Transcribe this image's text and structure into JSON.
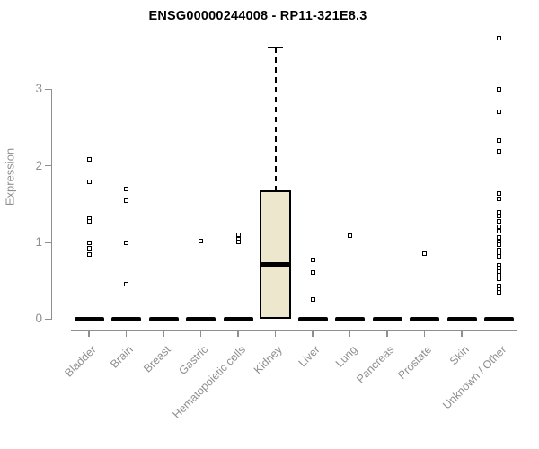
{
  "title": "ENSG00000244008 - RP11-321E8.3",
  "chart_data": {
    "type": "box",
    "title": "ENSG00000244008 - RP11-321E8.3",
    "xlabel": "",
    "ylabel": "Expression",
    "ylim": [
      0,
      3.7
    ],
    "yticks": [
      0,
      1,
      2,
      3
    ],
    "grid": false,
    "legend": null,
    "categories": [
      "Bladder",
      "Brain",
      "Breast",
      "Gastric",
      "Hematopoietic cells",
      "Kidney",
      "Liver",
      "Lung",
      "Pancreas",
      "Prostate",
      "Skin",
      "Unknown / Other"
    ],
    "series": [
      {
        "category": "Bladder",
        "box": {
          "q1": 0,
          "median": 0,
          "q3": 0,
          "whisker_low": 0,
          "whisker_high": 0
        },
        "outliers": [
          2.08,
          1.79,
          1.31,
          1.28,
          0.99,
          0.92,
          0.84
        ]
      },
      {
        "category": "Brain",
        "box": {
          "q1": 0,
          "median": 0,
          "q3": 0,
          "whisker_low": 0,
          "whisker_high": 0
        },
        "outliers": [
          1.7,
          1.55,
          0.99,
          0.45
        ]
      },
      {
        "category": "Breast",
        "box": {
          "q1": 0,
          "median": 0,
          "q3": 0,
          "whisker_low": 0,
          "whisker_high": 0
        },
        "outliers": []
      },
      {
        "category": "Gastric",
        "box": {
          "q1": 0,
          "median": 0,
          "q3": 0,
          "whisker_low": 0,
          "whisker_high": 0
        },
        "outliers": [
          1.02
        ]
      },
      {
        "category": "Hematopoietic cells",
        "box": {
          "q1": 0,
          "median": 0,
          "q3": 0,
          "whisker_low": 0,
          "whisker_high": 0
        },
        "outliers": [
          1.1,
          1.04,
          1.01
        ]
      },
      {
        "category": "Kidney",
        "box": {
          "q1": 0,
          "median": 0.71,
          "q3": 1.68,
          "whisker_low": 0,
          "whisker_high": 3.54
        },
        "outliers": []
      },
      {
        "category": "Liver",
        "box": {
          "q1": 0,
          "median": 0,
          "q3": 0,
          "whisker_low": 0,
          "whisker_high": 0
        },
        "outliers": [
          0.77,
          0.61,
          0.26
        ]
      },
      {
        "category": "Lung",
        "box": {
          "q1": 0,
          "median": 0,
          "q3": 0,
          "whisker_low": 0,
          "whisker_high": 0
        },
        "outliers": [
          1.09
        ]
      },
      {
        "category": "Pancreas",
        "box": {
          "q1": 0,
          "median": 0,
          "q3": 0,
          "whisker_low": 0,
          "whisker_high": 0
        },
        "outliers": []
      },
      {
        "category": "Prostate",
        "box": {
          "q1": 0,
          "median": 0,
          "q3": 0,
          "whisker_low": 0,
          "whisker_high": 0
        },
        "outliers": [
          0.85
        ]
      },
      {
        "category": "Skin",
        "box": {
          "q1": 0,
          "median": 0,
          "q3": 0,
          "whisker_low": 0,
          "whisker_high": 0
        },
        "outliers": []
      },
      {
        "category": "Unknown / Other",
        "box": {
          "q1": 0,
          "median": 0,
          "q3": 0,
          "whisker_low": 0,
          "whisker_high": 0
        },
        "outliers": [
          3.66,
          3.0,
          2.7,
          2.33,
          2.19,
          1.64,
          1.57,
          1.39,
          1.34,
          1.28,
          1.2,
          1.15,
          1.06,
          1.01,
          0.97,
          0.9,
          0.86,
          0.82,
          0.7,
          0.66,
          0.62,
          0.57,
          0.52,
          0.43,
          0.39,
          0.35
        ]
      }
    ],
    "colors": {
      "box_fill": "#EDE8CD",
      "box_border": "#000000",
      "median": "#000000",
      "outlier": "#000000",
      "axis": "#8F8F8F",
      "tick_text": "#8F8F8F",
      "title_text": "#000000"
    }
  }
}
